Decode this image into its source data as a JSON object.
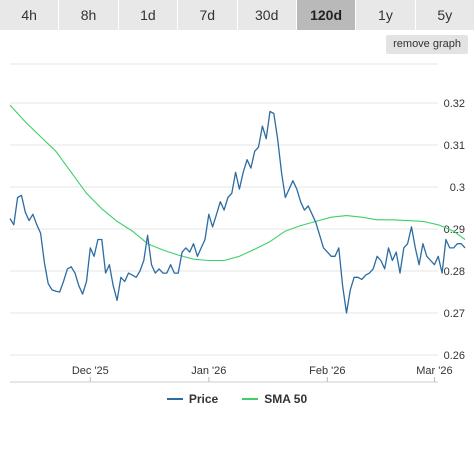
{
  "tabs": [
    {
      "label": "4h",
      "active": false
    },
    {
      "label": "8h",
      "active": false
    },
    {
      "label": "1d",
      "active": false
    },
    {
      "label": "7d",
      "active": false
    },
    {
      "label": "30d",
      "active": false
    },
    {
      "label": "120d",
      "active": true
    },
    {
      "label": "1y",
      "active": false
    },
    {
      "label": "5y",
      "active": false
    }
  ],
  "remove_graph_label": "remove graph",
  "colors": {
    "price": "#2b6ca3",
    "sma": "#3fcf6a",
    "grid": "#e6e6e6",
    "axis_text": "#333333"
  },
  "chart_data": {
    "type": "line",
    "title": "",
    "xlabel": "",
    "ylabel": "",
    "ylim": [
      0.26,
      0.32
    ],
    "yticks": [
      0.26,
      0.27,
      0.28,
      0.29,
      0.3,
      0.31,
      0.32
    ],
    "ytick_labels": [
      "0.26",
      "0.27",
      "0.28",
      "0.29",
      "0.3",
      "0.31",
      "0.32"
    ],
    "xlim": [
      "2025-11-10",
      "2026-03-09"
    ],
    "xticks": [
      {
        "label": "Dec '25",
        "date": "2025-12-01"
      },
      {
        "label": "Jan '26",
        "date": "2026-01-01"
      },
      {
        "label": "Feb '26",
        "date": "2026-02-01"
      },
      {
        "label": "Mar '26",
        "date": "2026-03-01"
      }
    ],
    "grid": true,
    "legend_position": "bottom",
    "series": [
      {
        "name": "Price",
        "color": "#2b6ca3",
        "points": [
          [
            "2025-11-10",
            0.2925
          ],
          [
            "2025-11-11",
            0.291
          ],
          [
            "2025-11-12",
            0.2975
          ],
          [
            "2025-11-13",
            0.298
          ],
          [
            "2025-11-14",
            0.294
          ],
          [
            "2025-11-15",
            0.292
          ],
          [
            "2025-11-16",
            0.2935
          ],
          [
            "2025-11-17",
            0.291
          ],
          [
            "2025-11-18",
            0.289
          ],
          [
            "2025-11-19",
            0.282
          ],
          [
            "2025-11-20",
            0.277
          ],
          [
            "2025-11-21",
            0.2755
          ],
          [
            "2025-11-22",
            0.2752
          ],
          [
            "2025-11-23",
            0.275
          ],
          [
            "2025-11-24",
            0.2775
          ],
          [
            "2025-11-25",
            0.2805
          ],
          [
            "2025-11-26",
            0.281
          ],
          [
            "2025-11-27",
            0.2795
          ],
          [
            "2025-11-28",
            0.2765
          ],
          [
            "2025-11-29",
            0.2745
          ],
          [
            "2025-11-30",
            0.2775
          ],
          [
            "2025-12-01",
            0.2855
          ],
          [
            "2025-12-02",
            0.2835
          ],
          [
            "2025-12-03",
            0.2875
          ],
          [
            "2025-12-04",
            0.2875
          ],
          [
            "2025-12-05",
            0.2795
          ],
          [
            "2025-12-06",
            0.2815
          ],
          [
            "2025-12-07",
            0.2765
          ],
          [
            "2025-12-08",
            0.273
          ],
          [
            "2025-12-09",
            0.2785
          ],
          [
            "2025-12-10",
            0.2775
          ],
          [
            "2025-12-11",
            0.2795
          ],
          [
            "2025-12-12",
            0.279
          ],
          [
            "2025-12-13",
            0.2785
          ],
          [
            "2025-12-14",
            0.28
          ],
          [
            "2025-12-15",
            0.2825
          ],
          [
            "2025-12-16",
            0.2885
          ],
          [
            "2025-12-17",
            0.2815
          ],
          [
            "2025-12-18",
            0.2795
          ],
          [
            "2025-12-19",
            0.2805
          ],
          [
            "2025-12-20",
            0.2795
          ],
          [
            "2025-12-21",
            0.2795
          ],
          [
            "2025-12-22",
            0.2815
          ],
          [
            "2025-12-23",
            0.2795
          ],
          [
            "2025-12-24",
            0.2795
          ],
          [
            "2025-12-25",
            0.2845
          ],
          [
            "2025-12-26",
            0.2855
          ],
          [
            "2025-12-27",
            0.2845
          ],
          [
            "2025-12-28",
            0.2865
          ],
          [
            "2025-12-29",
            0.2835
          ],
          [
            "2025-12-30",
            0.2855
          ],
          [
            "2025-12-31",
            0.2875
          ],
          [
            "2026-01-01",
            0.2935
          ],
          [
            "2026-01-02",
            0.2905
          ],
          [
            "2026-01-03",
            0.2935
          ],
          [
            "2026-01-04",
            0.2965
          ],
          [
            "2026-01-05",
            0.2945
          ],
          [
            "2026-01-06",
            0.2975
          ],
          [
            "2026-01-07",
            0.2985
          ],
          [
            "2026-01-08",
            0.3035
          ],
          [
            "2026-01-09",
            0.2995
          ],
          [
            "2026-01-10",
            0.3035
          ],
          [
            "2026-01-11",
            0.3065
          ],
          [
            "2026-01-12",
            0.3045
          ],
          [
            "2026-01-13",
            0.3085
          ],
          [
            "2026-01-14",
            0.3095
          ],
          [
            "2026-01-15",
            0.3145
          ],
          [
            "2026-01-16",
            0.3115
          ],
          [
            "2026-01-17",
            0.318
          ],
          [
            "2026-01-18",
            0.3175
          ],
          [
            "2026-01-19",
            0.3115
          ],
          [
            "2026-01-20",
            0.3035
          ],
          [
            "2026-01-21",
            0.2975
          ],
          [
            "2026-01-22",
            0.2995
          ],
          [
            "2026-01-23",
            0.3015
          ],
          [
            "2026-01-24",
            0.2995
          ],
          [
            "2026-01-25",
            0.2965
          ],
          [
            "2026-01-26",
            0.2945
          ],
          [
            "2026-01-27",
            0.2955
          ],
          [
            "2026-01-28",
            0.2935
          ],
          [
            "2026-01-29",
            0.2915
          ],
          [
            "2026-01-30",
            0.2885
          ],
          [
            "2026-01-31",
            0.2855
          ],
          [
            "2026-02-01",
            0.2845
          ],
          [
            "2026-02-02",
            0.2835
          ],
          [
            "2026-02-03",
            0.2835
          ],
          [
            "2026-02-04",
            0.2855
          ],
          [
            "2026-02-05",
            0.2765
          ],
          [
            "2026-02-06",
            0.27
          ],
          [
            "2026-02-07",
            0.2755
          ],
          [
            "2026-02-08",
            0.2785
          ],
          [
            "2026-02-09",
            0.2785
          ],
          [
            "2026-02-10",
            0.278
          ],
          [
            "2026-02-11",
            0.279
          ],
          [
            "2026-02-12",
            0.2795
          ],
          [
            "2026-02-13",
            0.2805
          ],
          [
            "2026-02-14",
            0.2835
          ],
          [
            "2026-02-15",
            0.2825
          ],
          [
            "2026-02-16",
            0.2805
          ],
          [
            "2026-02-17",
            0.2855
          ],
          [
            "2026-02-18",
            0.2825
          ],
          [
            "2026-02-19",
            0.2845
          ],
          [
            "2026-02-20",
            0.2795
          ],
          [
            "2026-02-21",
            0.2855
          ],
          [
            "2026-02-22",
            0.2865
          ],
          [
            "2026-02-23",
            0.2905
          ],
          [
            "2026-02-24",
            0.2855
          ],
          [
            "2026-02-25",
            0.2815
          ],
          [
            "2026-02-26",
            0.2865
          ],
          [
            "2026-02-27",
            0.2835
          ],
          [
            "2026-02-28",
            0.2825
          ],
          [
            "2026-03-01",
            0.2815
          ],
          [
            "2026-03-02",
            0.2835
          ],
          [
            "2026-03-03",
            0.2795
          ],
          [
            "2026-03-04",
            0.2875
          ],
          [
            "2026-03-05",
            0.2855
          ],
          [
            "2026-03-06",
            0.2855
          ],
          [
            "2026-03-07",
            0.2865
          ],
          [
            "2026-03-08",
            0.2865
          ],
          [
            "2026-03-09",
            0.2855
          ]
        ]
      },
      {
        "name": "SMA 50",
        "color": "#3fcf6a",
        "points": [
          [
            "2025-11-10",
            0.3195
          ],
          [
            "2025-11-14",
            0.3155
          ],
          [
            "2025-11-18",
            0.312
          ],
          [
            "2025-11-22",
            0.3085
          ],
          [
            "2025-11-26",
            0.3035
          ],
          [
            "2025-11-30",
            0.2985
          ],
          [
            "2025-12-04",
            0.2948
          ],
          [
            "2025-12-08",
            0.2918
          ],
          [
            "2025-12-12",
            0.2895
          ],
          [
            "2025-12-16",
            0.2865
          ],
          [
            "2025-12-20",
            0.285
          ],
          [
            "2025-12-24",
            0.2838
          ],
          [
            "2025-12-28",
            0.2828
          ],
          [
            "2026-01-01",
            0.2825
          ],
          [
            "2026-01-05",
            0.2825
          ],
          [
            "2026-01-09",
            0.2835
          ],
          [
            "2026-01-13",
            0.2852
          ],
          [
            "2026-01-17",
            0.287
          ],
          [
            "2026-01-21",
            0.2895
          ],
          [
            "2026-01-25",
            0.2908
          ],
          [
            "2026-01-29",
            0.2918
          ],
          [
            "2026-02-02",
            0.2928
          ],
          [
            "2026-02-06",
            0.2932
          ],
          [
            "2026-02-10",
            0.2928
          ],
          [
            "2026-02-14",
            0.2922
          ],
          [
            "2026-02-18",
            0.2922
          ],
          [
            "2026-02-22",
            0.292
          ],
          [
            "2026-02-26",
            0.2918
          ],
          [
            "2026-03-02",
            0.291
          ],
          [
            "2026-03-06",
            0.2895
          ],
          [
            "2026-03-09",
            0.2875
          ]
        ]
      }
    ]
  }
}
